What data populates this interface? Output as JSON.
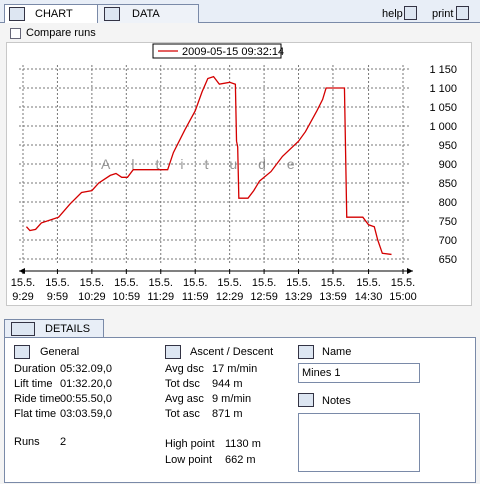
{
  "tabs": {
    "chart": "CHART",
    "data": "DATA"
  },
  "toolbar": {
    "help": "help",
    "print": "print"
  },
  "compare_runs": "Compare runs",
  "chart_data": {
    "type": "line",
    "watermark": "Altitude",
    "x": [
      "15.5. 9:32",
      "15.5. 9:35",
      "15.5. 9:40",
      "15.5. 9:45",
      "15.5. 9:55",
      "15.5. 10:00",
      "15.5. 10:10",
      "15.5. 10:20",
      "15.5. 10:29",
      "15.5. 10:35",
      "15.5. 10:45",
      "15.5. 10:50",
      "15.5. 10:55",
      "15.5. 11:00",
      "15.5. 11:05",
      "15.5. 11:15",
      "15.5. 11:29",
      "15.5. 11:35",
      "15.5. 11:40",
      "15.5. 11:50",
      "15.5. 11:59",
      "15.5. 12:05",
      "15.5. 12:10",
      "15.5. 12:15",
      "15.5. 12:20",
      "15.5. 12:29",
      "15.5. 12:34",
      "15.5. 12:35",
      "15.5. 12:36",
      "15.5. 12:37",
      "15.5. 12:45",
      "15.5. 12:50",
      "15.5. 12:55",
      "15.5. 13:05",
      "15.5. 13:15",
      "15.5. 13:29",
      "15.5. 13:35",
      "15.5. 13:45",
      "15.5. 13:50",
      "15.5. 13:53",
      "15.5. 14:00",
      "15.5. 14:09",
      "15.5. 14:11",
      "15.5. 14:25",
      "15.5. 14:30",
      "15.5. 14:35",
      "15.5. 14:38",
      "15.5. 14:42",
      "15.5. 14:50"
    ],
    "series": [
      {
        "name": "2009-05-15 09:32:14",
        "color": "#d40000",
        "values": [
          735,
          725,
          728,
          745,
          755,
          760,
          795,
          825,
          830,
          850,
          870,
          875,
          865,
          865,
          885,
          885,
          885,
          885,
          930,
          990,
          1040,
          1090,
          1125,
          1130,
          1110,
          1115,
          1110,
          960,
          945,
          810,
          810,
          830,
          855,
          880,
          920,
          960,
          985,
          1040,
          1070,
          1100,
          1100,
          1100,
          760,
          760,
          740,
          735,
          700,
          665,
          662
        ]
      }
    ],
    "xlim": [
      "15.5. 9:29",
      "15.5. 15:00"
    ],
    "xticks": [
      "15.5. 9:29",
      "15.5. 9:59",
      "15.5. 10:29",
      "15.5. 10:59",
      "15.5. 11:29",
      "15.5. 11:59",
      "15.5. 12:29",
      "15.5. 12:59",
      "15.5. 13:29",
      "15.5. 13:59",
      "15.5. 14:30",
      "15.5. 15:00"
    ],
    "ylim": [
      650,
      1150
    ],
    "yticks": [
      650,
      700,
      750,
      800,
      850,
      900,
      950,
      {
        "value": 1000,
        "label": "1 000"
      },
      {
        "value": 1050,
        "label": "1 050"
      },
      {
        "value": 1100,
        "label": "1 100"
      },
      {
        "value": 1150,
        "label": "1 150"
      }
    ],
    "grid": true
  },
  "details": {
    "tab": "DETAILS",
    "general": {
      "title": "General",
      "rows": [
        [
          "Duration",
          "05:32.09,0"
        ],
        [
          "Lift time",
          "01:32.20,0"
        ],
        [
          "Ride time",
          "00:55.50,0"
        ],
        [
          "Flat time",
          "03:03.59,0"
        ]
      ],
      "runs": [
        "Runs",
        "2"
      ]
    },
    "ascent": {
      "title": "Ascent / Descent",
      "rows": [
        [
          "Avg dsc",
          "17 m/min"
        ],
        [
          "Tot dsc",
          "944 m"
        ],
        [
          "Avg asc",
          "9 m/min"
        ],
        [
          "Tot asc",
          "871 m"
        ]
      ],
      "points": [
        [
          "High point",
          "1130 m"
        ],
        [
          "Low point",
          "662 m"
        ]
      ]
    },
    "name": {
      "title": "Name",
      "value": "Mines 1"
    },
    "notes": {
      "title": "Notes"
    }
  }
}
